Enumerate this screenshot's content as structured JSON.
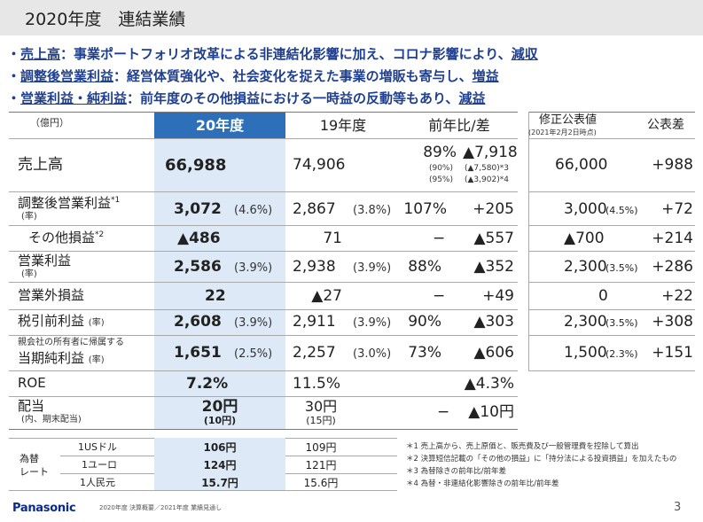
{
  "title": "2020年度　連結業績",
  "bullets": [
    {
      "prefix": "・",
      "key": "売上高",
      "text": "：事業ポートフォリオ改革による非連結化影響に加え、コロナ影響により、",
      "result": "減収"
    },
    {
      "prefix": "・",
      "key": "調整後営業利益",
      "text": "：経営体質強化や、社会変化を捉えた事業の増販も寄与し、",
      "result": "増益"
    },
    {
      "prefix": "・",
      "key": "営業利益・純利益",
      "text": "：前年度のその他損益における一時益の反動等もあり、",
      "result": "減益"
    }
  ],
  "header": {
    "unit": "（億円）",
    "fy20": "20年度",
    "fy19": "19年度",
    "yoy": "前年比/差",
    "forecast": "修正公表値",
    "forecast_date": "(2021年2月2日時点)",
    "diff": "公表差"
  },
  "rows": {
    "sales": {
      "label": "売上高",
      "v20": "66,988",
      "v19": "74,906",
      "yoy": "89%",
      "diff": "▲7,918",
      "yoy_sub1": "(90%)",
      "diff_sub1": "(▲7,580)*3",
      "yoy_sub2": "(95%)",
      "diff_sub2": "(▲3,902)*4",
      "fc": "66,000",
      "fcd": "+988"
    },
    "adj_op": {
      "label": "調整後営業利益",
      "note": "*1",
      "sub": "(率)",
      "v20": "3,072",
      "p20": "(4.6%)",
      "v19": "2,867",
      "p19": "(3.8%)",
      "yoy": "107%",
      "diff": "+205",
      "fc": "3,000",
      "fcp": "(4.5%)",
      "fcd": "+72"
    },
    "other": {
      "label": "その他損益",
      "note": "*2",
      "v20": "▲486",
      "v19": "71",
      "yoy": "−",
      "diff": "▲557",
      "fc": "▲700",
      "fcd": "+214"
    },
    "op": {
      "label": "営業利益",
      "sub": "(率)",
      "v20": "2,586",
      "p20": "(3.9%)",
      "v19": "2,938",
      "p19": "(3.9%)",
      "yoy": "88%",
      "diff": "▲352",
      "fc": "2,300",
      "fcp": "(3.5%)",
      "fcd": "+286"
    },
    "nonop": {
      "label": "営業外損益",
      "v20": "22",
      "v19": "▲27",
      "yoy": "−",
      "diff": "+49",
      "fc": "0",
      "fcd": "+22"
    },
    "pretax": {
      "label": "税引前利益",
      "sub": "(率)",
      "v20": "2,608",
      "p20": "(3.9%)",
      "v19": "2,911",
      "p19": "(3.9%)",
      "yoy": "90%",
      "diff": "▲303",
      "fc": "2,300",
      "fcp": "(3.5%)",
      "fcd": "+308"
    },
    "net": {
      "label_top": "親会社の所有者に帰属する",
      "label": "当期純利益",
      "sub": "(率)",
      "v20": "1,651",
      "p20": "(2.5%)",
      "v19": "2,257",
      "p19": "(3.0%)",
      "yoy": "73%",
      "diff": "▲606",
      "fc": "1,500",
      "fcp": "(2.3%)",
      "fcd": "+151"
    },
    "roe": {
      "label": "ROE",
      "v20": "7.2%",
      "v19": "11.5%",
      "diff": "▲4.3%"
    },
    "div": {
      "label": "配当",
      "sub": "(内、期末配当)",
      "v20": "20円",
      "v20s": "(10円)",
      "v19": "30円",
      "v19s": "(15円)",
      "yoy": "−",
      "diff": "▲10円"
    }
  },
  "fx": {
    "label1": "為替",
    "label2": "レート",
    "items": [
      {
        "ccy": "1USドル",
        "v20": "106円",
        "v19": "109円"
      },
      {
        "ccy": "1ユーロ",
        "v20": "124円",
        "v19": "121円"
      },
      {
        "ccy": "1人民元",
        "v20": "15.7円",
        "v19": "15.6円"
      }
    ]
  },
  "notes": [
    "＊1  売上高から、売上原価と、販売費及び一般管理費を控除して算出",
    "＊2  決算短信記載の「その他の損益」に「持分法による投資損益」を加えたもの",
    "＊3  為替除きの前年比/前年差",
    "＊4  為替・非連結化影響除きの前年比/前年差"
  ],
  "footer": {
    "logo": "Panasonic",
    "caption": "2020年度 決算概要／2021年度 業績見通し",
    "page": "3"
  },
  "colors": {
    "accent_blue": "#2d6fb8",
    "highlight": "#dde9f6",
    "bullet_text": "#1f3f8f"
  }
}
